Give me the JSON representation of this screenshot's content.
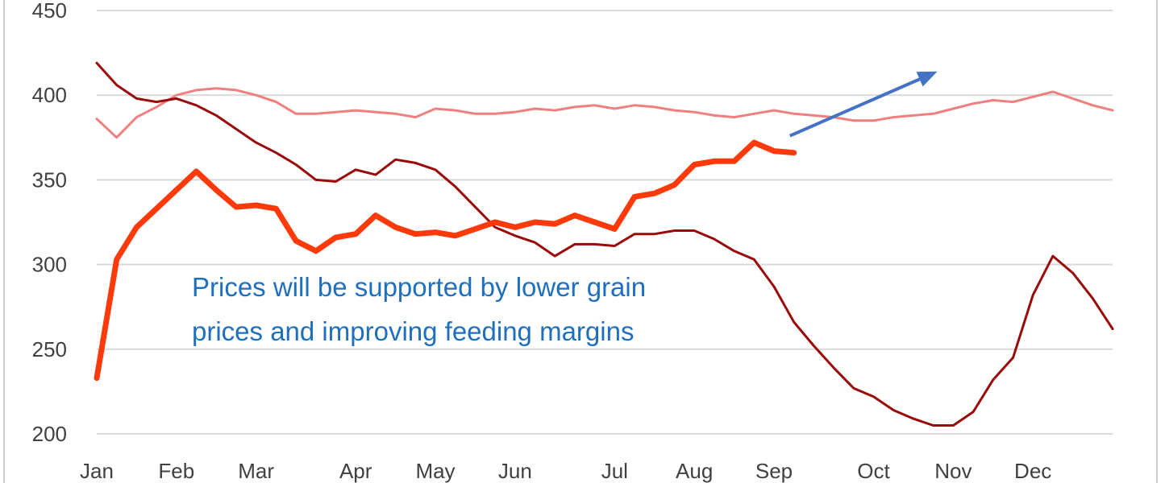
{
  "chart_data": {
    "type": "line",
    "title": "",
    "xlabel": "",
    "ylabel": "",
    "ylim": [
      200,
      450
    ],
    "yticks": [
      200,
      250,
      300,
      350,
      400,
      450
    ],
    "ytick_labels": [
      "200",
      "250",
      "300",
      "350",
      "400",
      "450"
    ],
    "x_domain": [
      1,
      52
    ],
    "xticks": [
      1,
      5,
      9,
      14,
      18,
      22,
      27,
      31,
      35,
      40,
      44,
      48
    ],
    "xtick_labels": [
      "Jan",
      "Feb",
      "Mar",
      "Apr",
      "May",
      "Jun",
      "Jul",
      "Aug",
      "Sep",
      "Oct",
      "Nov",
      "Dec"
    ],
    "grid": true,
    "legend": "none",
    "series": [
      {
        "color": "#f08080",
        "width": 3,
        "x": [
          1,
          2,
          3,
          4,
          5,
          6,
          7,
          8,
          9,
          10,
          11,
          12,
          13,
          14,
          15,
          16,
          17,
          18,
          19,
          20,
          21,
          22,
          23,
          24,
          25,
          26,
          27,
          28,
          29,
          30,
          31,
          32,
          33,
          34,
          35,
          36,
          37,
          38,
          39,
          40,
          41,
          42,
          43,
          44,
          45,
          46,
          47,
          48,
          49,
          50,
          51,
          52
        ],
        "values": [
          386,
          375,
          387,
          393,
          400,
          403,
          404,
          403,
          400,
          396,
          389,
          389,
          390,
          391,
          390,
          389,
          387,
          392,
          391,
          389,
          389,
          390,
          392,
          391,
          393,
          394,
          392,
          394,
          393,
          391,
          390,
          388,
          387,
          389,
          391,
          389,
          388,
          387,
          385,
          385,
          387,
          388,
          389,
          392,
          395,
          397,
          396,
          399,
          402,
          398,
          394,
          391
        ]
      },
      {
        "color": "#9b0a0a",
        "width": 3,
        "x": [
          1,
          2,
          3,
          4,
          5,
          6,
          7,
          8,
          9,
          10,
          11,
          12,
          13,
          14,
          15,
          16,
          17,
          18,
          19,
          20,
          21,
          22,
          23,
          24,
          25,
          26,
          27,
          28,
          29,
          30,
          31,
          32,
          33,
          34,
          35,
          36,
          37,
          38,
          39,
          40,
          41,
          42,
          43,
          44,
          45,
          46,
          47,
          48,
          49,
          50,
          51,
          52
        ],
        "values": [
          419,
          406,
          398,
          396,
          398,
          394,
          388,
          380,
          372,
          366,
          359,
          350,
          349,
          356,
          353,
          362,
          360,
          356,
          346,
          334,
          322,
          317,
          313,
          305,
          312,
          312,
          311,
          318,
          318,
          320,
          320,
          315,
          308,
          303,
          287,
          266,
          252,
          239,
          227,
          222,
          214,
          209,
          205,
          205,
          213,
          232,
          245,
          282,
          305,
          295,
          280,
          262
        ]
      },
      {
        "color": "#ff3a0a",
        "width": 7,
        "x": [
          1,
          2,
          3,
          4,
          5,
          6,
          7,
          8,
          9,
          10,
          11,
          12,
          13,
          14,
          15,
          16,
          17,
          18,
          19,
          20,
          21,
          22,
          23,
          24,
          25,
          26,
          27,
          28,
          29,
          30,
          31,
          32,
          33,
          34,
          35,
          36
        ],
        "values": [
          233,
          303,
          322,
          333,
          344,
          355,
          344,
          334,
          335,
          333,
          314,
          308,
          316,
          318,
          329,
          322,
          318,
          319,
          317,
          321,
          325,
          322,
          325,
          324,
          329,
          325,
          321,
          340,
          342,
          347,
          359,
          361,
          361,
          372,
          367,
          366
        ]
      }
    ],
    "annotations": {
      "text_lines": [
        "Prices will be supported by lower grain",
        "prices and improving feeding margins"
      ],
      "arrow_color": "#4472c4",
      "arrow_from": [
        35.8,
        376
      ],
      "arrow_to": [
        43.2,
        414
      ]
    }
  }
}
